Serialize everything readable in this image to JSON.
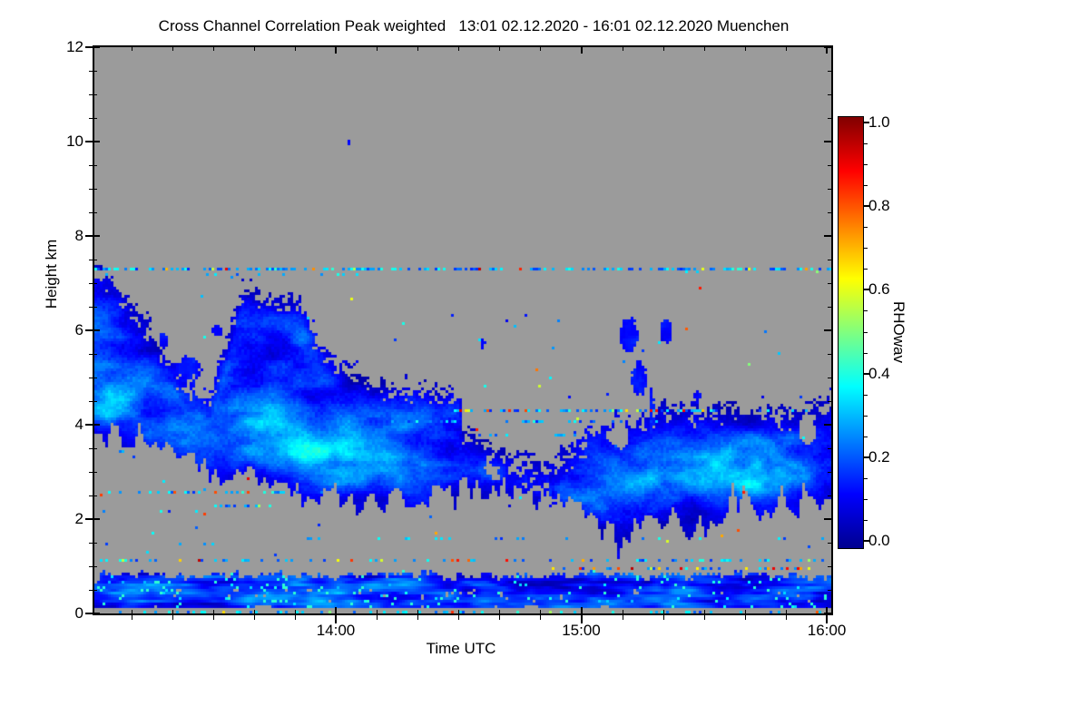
{
  "chart_data": {
    "type": "heatmap",
    "title": "Cross Channel Correlation Peak weighted   13:01 02.12.2020 - 16:01 02.12.2020 Muenchen",
    "xlabel": "Time UTC",
    "ylabel": "Height km",
    "station": "Muenchen",
    "time_span": {
      "start": "13:01 02.12.2020",
      "end": "16:01 02.12.2020",
      "minutes": 180
    },
    "x_ticks": [
      {
        "label": "14:00",
        "min": 59
      },
      {
        "label": "15:00",
        "min": 119
      },
      {
        "label": "16:00",
        "min": 179
      }
    ],
    "x_minor_step_min": 10,
    "y_range_km": [
      0,
      12
    ],
    "y_ticks": [
      {
        "label": "0",
        "km": 0
      },
      {
        "label": "2",
        "km": 2
      },
      {
        "label": "4",
        "km": 4
      },
      {
        "label": "6",
        "km": 6
      },
      {
        "label": "8",
        "km": 8
      },
      {
        "label": "10",
        "km": 10
      },
      {
        "label": "12",
        "km": 12
      }
    ],
    "y_minor_step_km": 0.5,
    "colorbar": {
      "label": "RHOwav",
      "range": [
        0.0,
        1.0
      ],
      "ticks": [
        {
          "label": "0.0",
          "v": 0.0
        },
        {
          "label": "0.2",
          "v": 0.2
        },
        {
          "label": "0.4",
          "v": 0.4
        },
        {
          "label": "0.6",
          "v": 0.6
        },
        {
          "label": "0.8",
          "v": 0.8
        },
        {
          "label": "1.0",
          "v": 1.0
        }
      ],
      "minor_step": 0.05,
      "colormap": "jet",
      "gradient_stops": [
        {
          "pos": 0.0,
          "color": "#00008f"
        },
        {
          "pos": 0.125,
          "color": "#0000ff"
        },
        {
          "pos": 0.375,
          "color": "#00ffff"
        },
        {
          "pos": 0.625,
          "color": "#ffff00"
        },
        {
          "pos": 0.875,
          "color": "#ff0000"
        },
        {
          "pos": 1.0,
          "color": "#800000"
        }
      ]
    },
    "no_data_color": "#9b9b9b",
    "typical_cloud_rho_range": [
      0.05,
      0.35
    ],
    "features": {
      "clouds": [
        {
          "name": "left-mid-cloud-system",
          "seed": 5,
          "pts": [
            [
              0,
              3.8,
              7.25
            ],
            [
              4,
              3.8,
              7.05
            ],
            [
              8,
              3.75,
              6.6
            ],
            [
              13,
              3.6,
              6.1
            ],
            [
              18,
              3.45,
              5.35
            ],
            [
              23,
              3.2,
              4.75
            ],
            [
              28,
              3.05,
              4.5
            ],
            [
              32,
              3.0,
              5.6
            ],
            [
              36,
              2.9,
              6.9
            ],
            [
              41,
              2.8,
              6.7
            ],
            [
              46,
              2.65,
              6.55
            ],
            [
              50,
              2.55,
              6.6
            ],
            [
              53,
              2.5,
              6.0
            ],
            [
              57,
              2.45,
              5.45
            ],
            [
              61,
              2.4,
              5.2
            ],
            [
              66,
              2.4,
              5.0
            ],
            [
              72,
              2.4,
              4.75
            ],
            [
              78,
              2.45,
              4.8
            ],
            [
              84,
              2.5,
              4.7
            ],
            [
              89,
              2.55,
              4.65
            ],
            [
              90,
              2.6,
              3.9
            ],
            [
              94,
              2.6,
              3.7
            ],
            [
              99,
              2.55,
              3.45
            ],
            [
              104,
              2.5,
              3.25
            ],
            [
              109,
              2.4,
              3.15
            ],
            [
              113,
              2.3,
              3.05
            ]
          ],
          "rho0": 0.13,
          "amp": 0.3,
          "feather_top": 0.5,
          "feather_bottom": 0.35,
          "fingers": true,
          "gappy": [
            95,
            113,
            0.35
          ],
          "cores": [
            [
              4,
              4.6,
              8,
              0.7,
              0.16
            ],
            [
              55,
              3.5,
              13,
              0.8,
              0.18
            ],
            [
              40,
              4.0,
              10,
              1.0,
              0.1
            ],
            [
              75,
              3.4,
              10,
              0.7,
              0.09
            ],
            [
              20,
              3.9,
              8,
              0.6,
              0.08
            ]
          ],
          "holes": []
        },
        {
          "name": "right-cloud-system",
          "seed": 9,
          "pts": [
            [
              111,
              2.3,
              3.0
            ],
            [
              115,
              2.1,
              3.35
            ],
            [
              119,
              1.9,
              3.6
            ],
            [
              123,
              1.7,
              3.9
            ],
            [
              128,
              1.55,
              4.05
            ],
            [
              133,
              1.6,
              4.1
            ],
            [
              137,
              1.75,
              4.3
            ],
            [
              141,
              1.9,
              4.35
            ],
            [
              146,
              2.0,
              4.3
            ],
            [
              151,
              2.15,
              4.3
            ],
            [
              156,
              2.2,
              4.35
            ],
            [
              161,
              2.25,
              4.3
            ],
            [
              166,
              2.3,
              4.3
            ],
            [
              171,
              2.35,
              4.25
            ],
            [
              176,
              2.4,
              4.4
            ],
            [
              180,
              2.45,
              4.5
            ]
          ],
          "rho0": 0.14,
          "amp": 0.3,
          "feather_top": 0.55,
          "feather_bottom": 0.5,
          "fingers": true,
          "gappy": null,
          "cores": [
            [
              152,
              3.0,
              15,
              0.6,
              0.19
            ],
            [
              127,
              2.4,
              10,
              0.5,
              0.11
            ],
            [
              168,
              3.1,
              9,
              0.7,
              0.11
            ]
          ],
          "holes": [
            [
              128,
              3.75,
              4,
              0.35
            ],
            [
              174,
              3.9,
              3,
              0.4
            ]
          ]
        }
      ],
      "blobs": [
        [
          130.5,
          5.5,
          6.3,
          2.2,
          0
        ],
        [
          133,
          4.6,
          5.35,
          2.0,
          0
        ],
        [
          139.5,
          5.7,
          6.25,
          1.6,
          0
        ],
        [
          136,
          3.6,
          5.0,
          0.7,
          1
        ],
        [
          147,
          4.45,
          4.75,
          1.0,
          1
        ],
        [
          95,
          5.6,
          5.85,
          0.8,
          1
        ],
        [
          62,
          9.9,
          10.05,
          0.5,
          1
        ],
        [
          23,
          4.9,
          5.5,
          3.5,
          1
        ],
        [
          30,
          5.8,
          6.15,
          1.5,
          1
        ],
        [
          17,
          5.6,
          6.0,
          1.2,
          1
        ]
      ],
      "speckle_rows": [
        [
          7.32,
          0,
          180,
          0.5,
          0.06
        ],
        [
          7.18,
          0,
          70,
          0.12,
          0
        ],
        [
          4.28,
          88,
          152,
          0.55,
          0.25
        ],
        [
          4.28,
          152,
          178,
          0.15,
          0.1
        ],
        [
          4.05,
          62,
          140,
          0.2,
          0.05
        ],
        [
          3.8,
          93,
          118,
          0.3,
          0.05
        ],
        [
          2.55,
          2,
          56,
          0.3,
          0.08
        ],
        [
          2.3,
          26,
          44,
          0.35,
          0.05
        ],
        [
          2.18,
          0,
          26,
          0.1,
          0
        ],
        [
          1.6,
          50,
          180,
          0.1,
          0.1
        ],
        [
          1.5,
          0,
          50,
          0.07,
          0
        ],
        [
          1.12,
          0,
          180,
          0.28,
          0.18
        ],
        [
          0.97,
          110,
          175,
          0.3,
          0.45
        ],
        [
          0.05,
          0,
          180,
          0.2,
          0.1
        ]
      ],
      "scatter": {
        "h0": 1.2,
        "h1": 7.25,
        "density": 0.004,
        "warm": 0.25
      },
      "boundary_layer": {
        "t0": 0,
        "t1": 180,
        "base": 0.12,
        "top": 0.8,
        "rho0": 0.15,
        "amp": 0.35,
        "speckle": 0.05,
        "seed": 31
      }
    }
  }
}
